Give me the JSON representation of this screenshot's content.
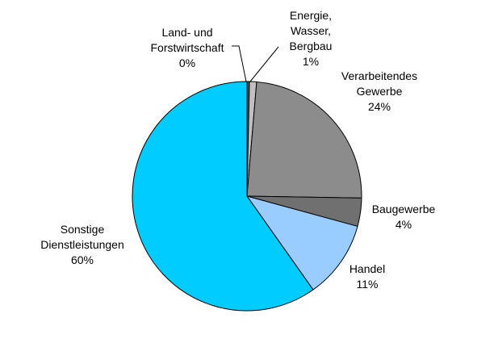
{
  "chart_data": {
    "type": "pie",
    "labels": [
      "Land- und Forstwirtschaft",
      "Energie, Wasser, Bergbau",
      "Verarbeitendes Gewerbe",
      "Baugewerbe",
      "Handel",
      "Sonstige Dienstleistungen"
    ],
    "values": [
      0.35,
      1,
      24,
      4,
      11,
      60
    ],
    "percent_labels": [
      "0%",
      "1%",
      "24%",
      "4%",
      "11%",
      "60%"
    ],
    "label_lines": [
      [
        "Land- und",
        "Forstwirtschaft"
      ],
      [
        "Energie,",
        "Wasser,",
        "Bergbau"
      ],
      [
        "Verarbeitendes",
        "Gewerbe"
      ],
      [
        "Baugewerbe"
      ],
      [
        "Handel"
      ],
      [
        "Sonstige",
        "Dienstleistungen"
      ]
    ],
    "colors": [
      "#4D4D4D",
      "#C0C0C0",
      "#8C8C8C",
      "#707070",
      "#99CCFF",
      "#00CCFF"
    ],
    "start_angle": "12 o'clock",
    "direction": "clockwise",
    "edge_color": "#000000",
    "legend": "none"
  }
}
